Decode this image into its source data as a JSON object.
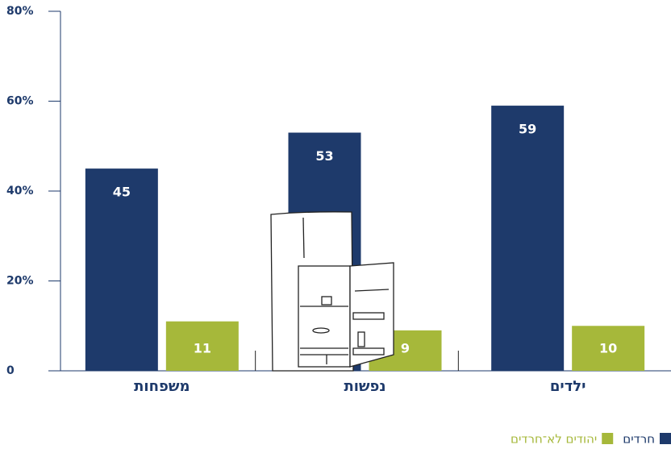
{
  "chart_data": {
    "type": "bar",
    "categories": [
      "משפחות",
      "נפשות",
      "ילדים"
    ],
    "series": [
      {
        "name": "חרדים",
        "color": "#1e3a6b",
        "values": [
          45,
          53,
          59
        ]
      },
      {
        "name": "יהודים לא־חרדים",
        "color": "#a6b83a",
        "values": [
          11,
          9,
          10
        ]
      }
    ],
    "ylim": [
      0,
      80
    ],
    "yticks": [
      0,
      {
        "value": 20,
        "label": "20%"
      },
      {
        "value": 40,
        "label": "40%"
      },
      {
        "value": 60,
        "label": "60%"
      },
      {
        "value": 80,
        "label": "80%"
      }
    ],
    "grid": false
  }
}
